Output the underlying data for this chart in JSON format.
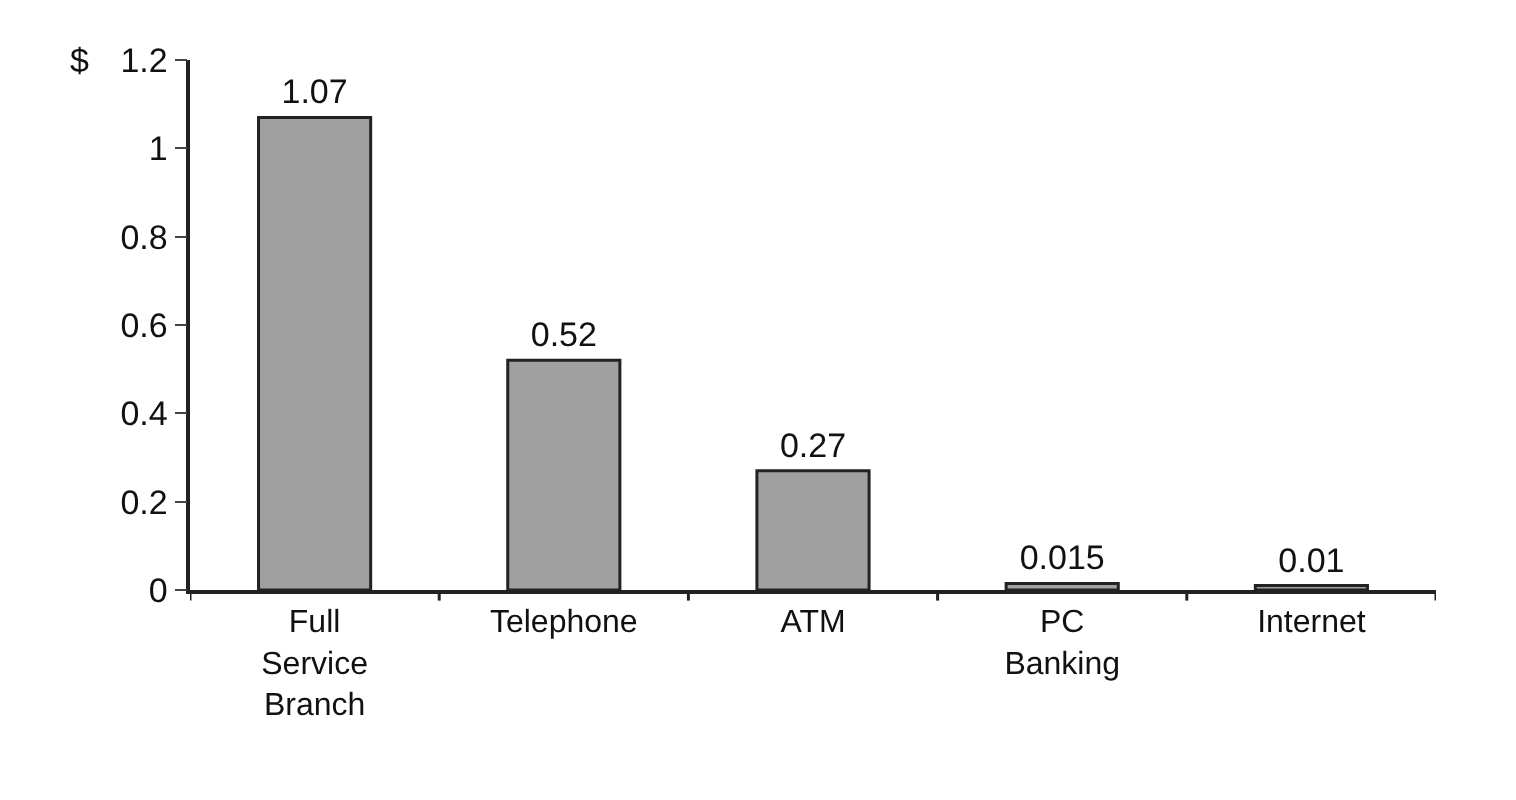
{
  "chart_data": {
    "type": "bar",
    "ylabel": "$",
    "categories": [
      "Full Service Branch",
      "Telephone",
      "ATM",
      "PC Banking",
      "Internet"
    ],
    "values": [
      1.07,
      0.52,
      0.27,
      0.015,
      0.01
    ],
    "value_labels": [
      "1.07",
      "0.52",
      "0.27",
      "0.015",
      "0.01"
    ],
    "color": "#a0a0a0",
    "ylim": [
      0,
      1.2
    ],
    "yticks": [
      0,
      0.2,
      0.4,
      0.6,
      0.8,
      {
        "value": 1,
        "label": "1"
      },
      1.2
    ]
  }
}
